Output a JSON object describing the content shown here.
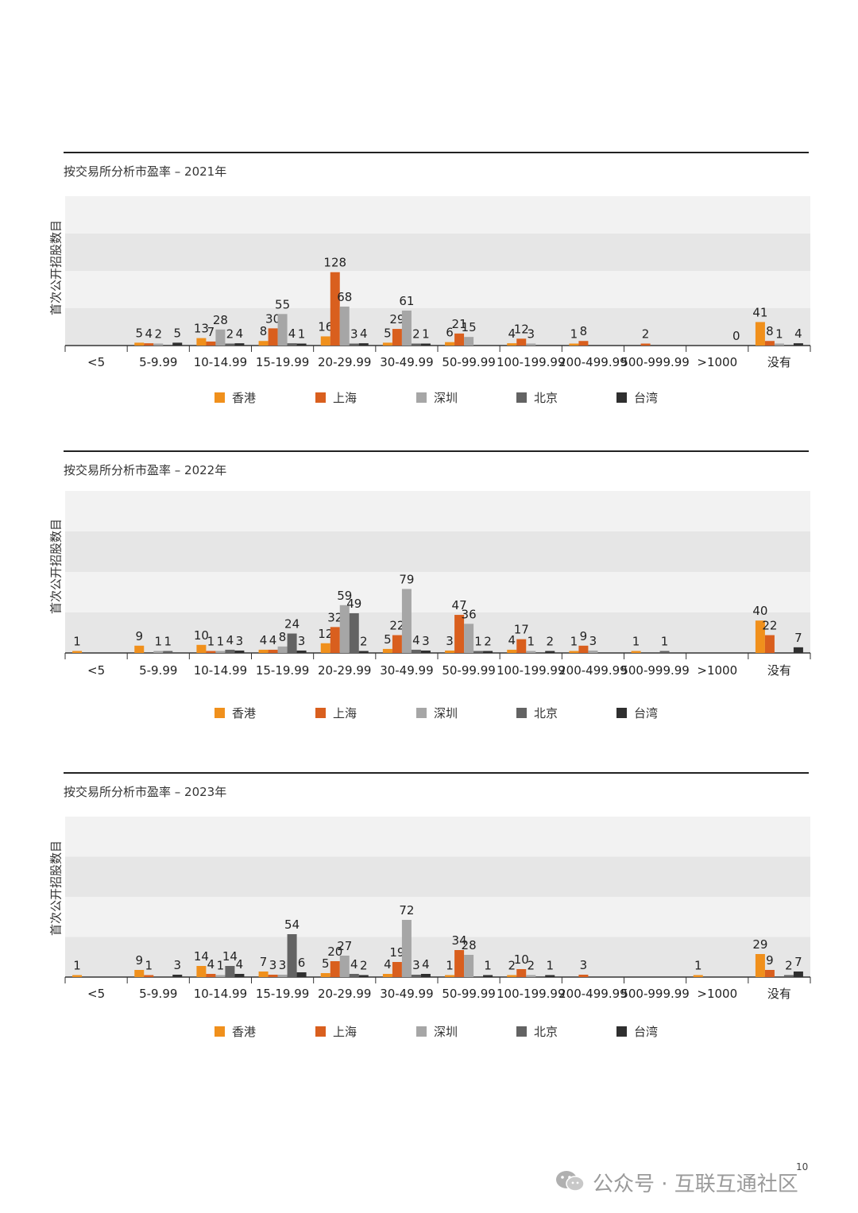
{
  "charts": [
    {
      "title": "按交易所分析市盈率 – 2021年",
      "ylabel": "首次公开招股数目",
      "legend": [
        {
          "name": "香港",
          "color": "#f0901c"
        },
        {
          "name": "上海",
          "color": "#d95f1e"
        },
        {
          "name": "深圳",
          "color": "#a6a6a6"
        },
        {
          "name": "北京",
          "color": "#636363"
        },
        {
          "name": "台湾",
          "color": "#2f2f2f"
        }
      ],
      "chart_data": {
        "type": "bar",
        "title": "按交易所分析市盈率 – 2021年",
        "xlabel": "",
        "ylabel": "首次公开招股数目",
        "categories": [
          "<5",
          "5-9.99",
          "10-14.99",
          "15-19.99",
          "20-29.99",
          "30-49.99",
          "50-99.99",
          "100-199.99",
          "200-499.99",
          "500-999.99",
          ">1000",
          "没有"
        ],
        "series": [
          {
            "name": "香港",
            "color": "#f0901c",
            "values": [
              null,
              5,
              13,
              8,
              16,
              5,
              6,
              4,
              1,
              null,
              null,
              41
            ]
          },
          {
            "name": "上海",
            "color": "#d95f1e",
            "values": [
              null,
              4,
              7,
              30,
              128,
              29,
              21,
              12,
              8,
              2,
              null,
              8
            ]
          },
          {
            "name": "深圳",
            "color": "#a6a6a6",
            "values": [
              null,
              2,
              28,
              55,
              68,
              61,
              15,
              3,
              null,
              null,
              null,
              1
            ]
          },
          {
            "name": "北京",
            "color": "#636363",
            "values": [
              null,
              null,
              2,
              4,
              3,
              2,
              null,
              null,
              null,
              null,
              null,
              null
            ]
          },
          {
            "name": "台湾",
            "color": "#2f2f2f",
            "values": [
              null,
              5,
              4,
              1,
              4,
              1,
              null,
              null,
              null,
              null,
              0,
              4
            ]
          }
        ],
        "ylim": [
          0,
          200
        ],
        "grid": true
      }
    },
    {
      "title": "按交易所分析市盈率 – 2022年",
      "ylabel": "首次公开招股数目",
      "legend": [
        {
          "name": "香港",
          "color": "#f0901c"
        },
        {
          "name": "上海",
          "color": "#d95f1e"
        },
        {
          "name": "深圳",
          "color": "#a6a6a6"
        },
        {
          "name": "北京",
          "color": "#636363"
        },
        {
          "name": "台湾",
          "color": "#2f2f2f"
        }
      ],
      "chart_data": {
        "type": "bar",
        "title": "按交易所分析市盈率 – 2022年",
        "xlabel": "",
        "ylabel": "首次公开招股数目",
        "categories": [
          "<5",
          "5-9.99",
          "10-14.99",
          "15-19.99",
          "20-29.99",
          "30-49.99",
          "50-99.99",
          "100-199.99",
          "200-499.99",
          "500-999.99",
          ">1000",
          "没有"
        ],
        "series": [
          {
            "name": "香港",
            "color": "#f0901c",
            "values": [
              1,
              9,
              10,
              4,
              12,
              5,
              3,
              4,
              1,
              1,
              null,
              40
            ]
          },
          {
            "name": "上海",
            "color": "#d95f1e",
            "values": [
              null,
              null,
              1,
              4,
              32,
              22,
              47,
              17,
              9,
              null,
              null,
              22
            ]
          },
          {
            "name": "深圳",
            "color": "#a6a6a6",
            "values": [
              null,
              1,
              1,
              8,
              59,
              79,
              36,
              1,
              3,
              null,
              null,
              null
            ]
          },
          {
            "name": "北京",
            "color": "#636363",
            "values": [
              null,
              1,
              4,
              24,
              49,
              4,
              1,
              null,
              null,
              1,
              null,
              null
            ]
          },
          {
            "name": "台湾",
            "color": "#2f2f2f",
            "values": [
              null,
              null,
              3,
              3,
              2,
              3,
              2,
              2,
              null,
              null,
              null,
              7
            ]
          }
        ],
        "ylim": [
          0,
          200
        ],
        "grid": true
      }
    },
    {
      "title": "按交易所分析市盈率 – 2023年",
      "ylabel": "首次公开招股数目",
      "legend": [
        {
          "name": "香港",
          "color": "#f0901c"
        },
        {
          "name": "上海",
          "color": "#d95f1e"
        },
        {
          "name": "深圳",
          "color": "#a6a6a6"
        },
        {
          "name": "北京",
          "color": "#636363"
        },
        {
          "name": "台湾",
          "color": "#2f2f2f"
        }
      ],
      "chart_data": {
        "type": "bar",
        "title": "按交易所分析市盈率 – 2023年",
        "xlabel": "",
        "ylabel": "首次公开招股数目",
        "categories": [
          "<5",
          "5-9.99",
          "10-14.99",
          "15-19.99",
          "20-29.99",
          "30-49.99",
          "50-99.99",
          "100-199.99",
          "200-499.99",
          "500-999.99",
          ">1000",
          "没有"
        ],
        "series": [
          {
            "name": "香港",
            "color": "#f0901c",
            "values": [
              1,
              9,
              14,
              7,
              5,
              4,
              1,
              2,
              null,
              null,
              1,
              29
            ]
          },
          {
            "name": "上海",
            "color": "#d95f1e",
            "values": [
              null,
              1,
              4,
              3,
              20,
              19,
              34,
              10,
              3,
              null,
              null,
              9
            ]
          },
          {
            "name": "深圳",
            "color": "#a6a6a6",
            "values": [
              null,
              null,
              1,
              3,
              27,
              72,
              28,
              2,
              null,
              null,
              null,
              null
            ]
          },
          {
            "name": "北京",
            "color": "#636363",
            "values": [
              null,
              null,
              14,
              54,
              4,
              3,
              null,
              null,
              null,
              null,
              null,
              2
            ]
          },
          {
            "name": "台湾",
            "color": "#2f2f2f",
            "values": [
              null,
              3,
              4,
              6,
              2,
              4,
              1,
              1,
              null,
              null,
              null,
              7
            ]
          }
        ],
        "ylim": [
          0,
          200
        ],
        "grid": true
      }
    }
  ],
  "footer": {
    "page_number": "10",
    "watermark": "公众号 · 互联互通社区"
  }
}
